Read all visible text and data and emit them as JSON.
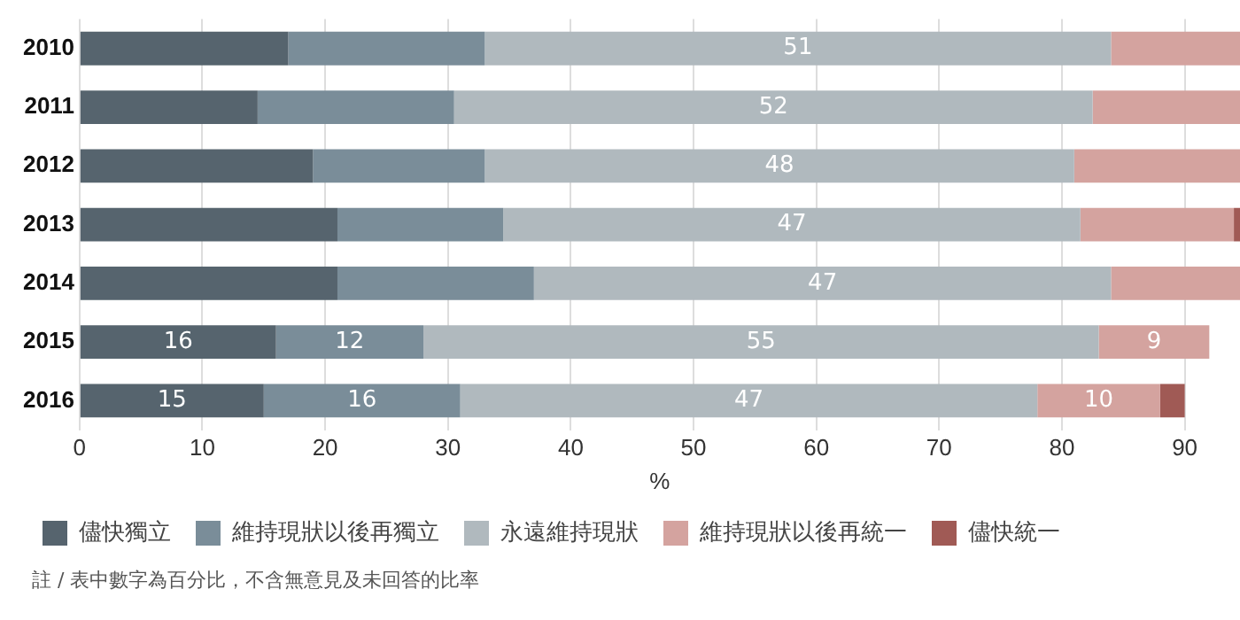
{
  "chart_data": {
    "type": "bar",
    "orientation": "horizontal",
    "stacked": true,
    "xlabel": "%",
    "categories": [
      "2010",
      "2011",
      "2012",
      "2013",
      "2014",
      "2015",
      "2016"
    ],
    "series": [
      {
        "name": "儘快獨立",
        "color": "#56646e",
        "values": [
          17,
          14.5,
          19,
          21,
          21,
          16,
          15
        ],
        "value_labels": [
          null,
          null,
          null,
          null,
          null,
          "16",
          "15"
        ]
      },
      {
        "name": "維持現狀以後再獨立",
        "color": "#7a8d99",
        "values": [
          16,
          16,
          14,
          13.5,
          16,
          12,
          16
        ],
        "value_labels": [
          null,
          null,
          null,
          null,
          null,
          "12",
          "16"
        ]
      },
      {
        "name": "永遠維持現狀",
        "color": "#b0b9be",
        "values": [
          51,
          52,
          48,
          47,
          47,
          55,
          47
        ],
        "value_labels": [
          "51",
          "52",
          "48",
          "47",
          "47",
          "55",
          "47"
        ]
      },
      {
        "name": "維持現狀以後再統一",
        "color": "#d4a39f",
        "values": [
          10.5,
          12,
          13.5,
          12.5,
          10.5,
          9,
          10
        ],
        "value_labels": [
          null,
          null,
          null,
          null,
          null,
          "9",
          "10"
        ]
      },
      {
        "name": "儘快統一",
        "color": "#a05a55",
        "values": [
          null,
          null,
          null,
          0.5,
          null,
          null,
          2
        ]
      }
    ],
    "xlim": [
      0,
      94.5
    ],
    "xticks": [
      0,
      10,
      20,
      30,
      40,
      50,
      60,
      70,
      80,
      90
    ],
    "grid": "x",
    "legend": "bottom",
    "annotations": [
      "註 / 表中數字為百分比，不含無意見及未回答的比率"
    ]
  }
}
